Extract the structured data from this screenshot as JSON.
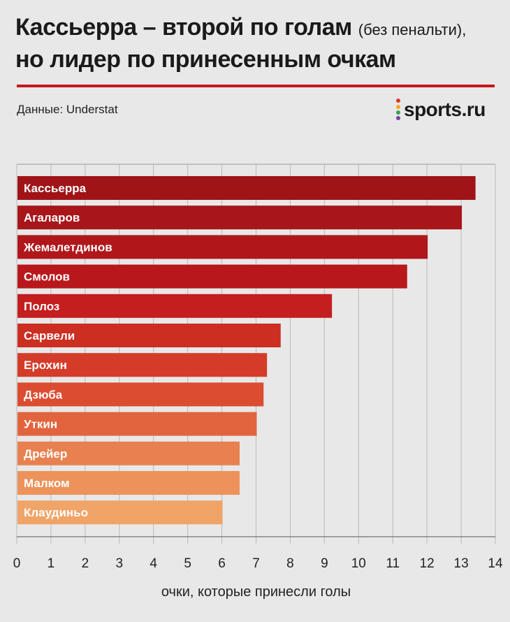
{
  "header": {
    "title_line1": "Кассьерра – второй по голам",
    "title_note": "(без пенальти),",
    "title_line2": "но лидер по принесенным очкам",
    "source": "Данные: Understat",
    "logo_text": "sports.ru",
    "accent_color": "#c8161d"
  },
  "chart_data": {
    "type": "bar",
    "orientation": "horizontal",
    "categories": [
      "Кассьерра",
      "Агаларов",
      "Жемалетдинов",
      "Смолов",
      "Полоз",
      "Сарвели",
      "Ерохин",
      "Дзюба",
      "Уткин",
      "Дрейер",
      "Малком",
      "Клаудиньо"
    ],
    "values": [
      13.4,
      13.0,
      12.0,
      11.4,
      9.2,
      7.7,
      7.3,
      7.2,
      7.0,
      6.5,
      6.5,
      6.0
    ],
    "colors": [
      "#a01418",
      "#a8161a",
      "#b0171b",
      "#b8181c",
      "#c41e1e",
      "#cc2e22",
      "#d43c29",
      "#dc4c31",
      "#e2643f",
      "#e8814f",
      "#ec925a",
      "#f0a468"
    ],
    "xlim": [
      0,
      14
    ],
    "xticks": [
      0,
      1,
      2,
      3,
      4,
      5,
      6,
      7,
      8,
      9,
      10,
      11,
      12,
      13,
      14
    ],
    "xlabel": "очки, которые принесли голы",
    "grid": true,
    "title": "Кассьерра – второй по голам (без пенальти), но лидер по принесенным очкам"
  }
}
